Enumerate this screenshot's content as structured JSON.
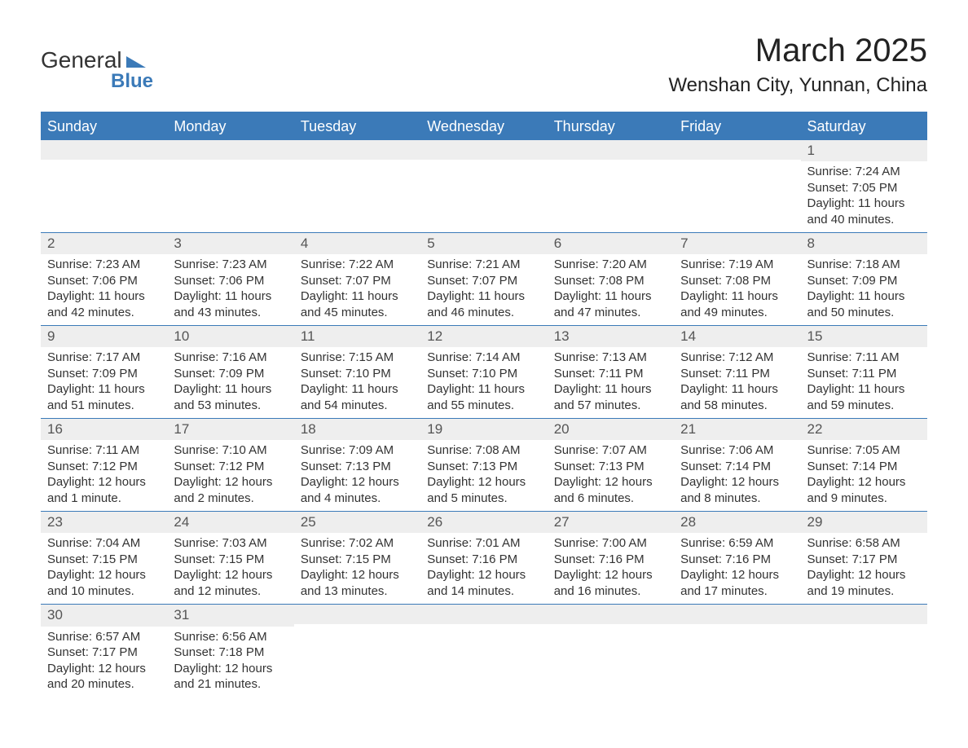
{
  "brand": {
    "name1": "General",
    "name2": "Blue"
  },
  "title": {
    "month": "March 2025",
    "location": "Wenshan City, Yunnan, China"
  },
  "colors": {
    "header_bg": "#3b7ab8",
    "header_text": "#ffffff",
    "daynum_bg": "#eeeeee",
    "border": "#3b7ab8",
    "text": "#333333",
    "background": "#ffffff"
  },
  "typography": {
    "title_fontsize": 40,
    "location_fontsize": 24,
    "header_fontsize": 18,
    "daynum_fontsize": 17,
    "body_fontsize": 15
  },
  "columns": [
    "Sunday",
    "Monday",
    "Tuesday",
    "Wednesday",
    "Thursday",
    "Friday",
    "Saturday"
  ],
  "weeks": [
    [
      null,
      null,
      null,
      null,
      null,
      null,
      {
        "n": "1",
        "sunrise": "7:24 AM",
        "sunset": "7:05 PM",
        "daylight": "11 hours and 40 minutes."
      }
    ],
    [
      {
        "n": "2",
        "sunrise": "7:23 AM",
        "sunset": "7:06 PM",
        "daylight": "11 hours and 42 minutes."
      },
      {
        "n": "3",
        "sunrise": "7:23 AM",
        "sunset": "7:06 PM",
        "daylight": "11 hours and 43 minutes."
      },
      {
        "n": "4",
        "sunrise": "7:22 AM",
        "sunset": "7:07 PM",
        "daylight": "11 hours and 45 minutes."
      },
      {
        "n": "5",
        "sunrise": "7:21 AM",
        "sunset": "7:07 PM",
        "daylight": "11 hours and 46 minutes."
      },
      {
        "n": "6",
        "sunrise": "7:20 AM",
        "sunset": "7:08 PM",
        "daylight": "11 hours and 47 minutes."
      },
      {
        "n": "7",
        "sunrise": "7:19 AM",
        "sunset": "7:08 PM",
        "daylight": "11 hours and 49 minutes."
      },
      {
        "n": "8",
        "sunrise": "7:18 AM",
        "sunset": "7:09 PM",
        "daylight": "11 hours and 50 minutes."
      }
    ],
    [
      {
        "n": "9",
        "sunrise": "7:17 AM",
        "sunset": "7:09 PM",
        "daylight": "11 hours and 51 minutes."
      },
      {
        "n": "10",
        "sunrise": "7:16 AM",
        "sunset": "7:09 PM",
        "daylight": "11 hours and 53 minutes."
      },
      {
        "n": "11",
        "sunrise": "7:15 AM",
        "sunset": "7:10 PM",
        "daylight": "11 hours and 54 minutes."
      },
      {
        "n": "12",
        "sunrise": "7:14 AM",
        "sunset": "7:10 PM",
        "daylight": "11 hours and 55 minutes."
      },
      {
        "n": "13",
        "sunrise": "7:13 AM",
        "sunset": "7:11 PM",
        "daylight": "11 hours and 57 minutes."
      },
      {
        "n": "14",
        "sunrise": "7:12 AM",
        "sunset": "7:11 PM",
        "daylight": "11 hours and 58 minutes."
      },
      {
        "n": "15",
        "sunrise": "7:11 AM",
        "sunset": "7:11 PM",
        "daylight": "11 hours and 59 minutes."
      }
    ],
    [
      {
        "n": "16",
        "sunrise": "7:11 AM",
        "sunset": "7:12 PM",
        "daylight": "12 hours and 1 minute."
      },
      {
        "n": "17",
        "sunrise": "7:10 AM",
        "sunset": "7:12 PM",
        "daylight": "12 hours and 2 minutes."
      },
      {
        "n": "18",
        "sunrise": "7:09 AM",
        "sunset": "7:13 PM",
        "daylight": "12 hours and 4 minutes."
      },
      {
        "n": "19",
        "sunrise": "7:08 AM",
        "sunset": "7:13 PM",
        "daylight": "12 hours and 5 minutes."
      },
      {
        "n": "20",
        "sunrise": "7:07 AM",
        "sunset": "7:13 PM",
        "daylight": "12 hours and 6 minutes."
      },
      {
        "n": "21",
        "sunrise": "7:06 AM",
        "sunset": "7:14 PM",
        "daylight": "12 hours and 8 minutes."
      },
      {
        "n": "22",
        "sunrise": "7:05 AM",
        "sunset": "7:14 PM",
        "daylight": "12 hours and 9 minutes."
      }
    ],
    [
      {
        "n": "23",
        "sunrise": "7:04 AM",
        "sunset": "7:15 PM",
        "daylight": "12 hours and 10 minutes."
      },
      {
        "n": "24",
        "sunrise": "7:03 AM",
        "sunset": "7:15 PM",
        "daylight": "12 hours and 12 minutes."
      },
      {
        "n": "25",
        "sunrise": "7:02 AM",
        "sunset": "7:15 PM",
        "daylight": "12 hours and 13 minutes."
      },
      {
        "n": "26",
        "sunrise": "7:01 AM",
        "sunset": "7:16 PM",
        "daylight": "12 hours and 14 minutes."
      },
      {
        "n": "27",
        "sunrise": "7:00 AM",
        "sunset": "7:16 PM",
        "daylight": "12 hours and 16 minutes."
      },
      {
        "n": "28",
        "sunrise": "6:59 AM",
        "sunset": "7:16 PM",
        "daylight": "12 hours and 17 minutes."
      },
      {
        "n": "29",
        "sunrise": "6:58 AM",
        "sunset": "7:17 PM",
        "daylight": "12 hours and 19 minutes."
      }
    ],
    [
      {
        "n": "30",
        "sunrise": "6:57 AM",
        "sunset": "7:17 PM",
        "daylight": "12 hours and 20 minutes."
      },
      {
        "n": "31",
        "sunrise": "6:56 AM",
        "sunset": "7:18 PM",
        "daylight": "12 hours and 21 minutes."
      },
      null,
      null,
      null,
      null,
      null
    ]
  ],
  "labels": {
    "sunrise": "Sunrise: ",
    "sunset": "Sunset: ",
    "daylight": "Daylight: "
  }
}
